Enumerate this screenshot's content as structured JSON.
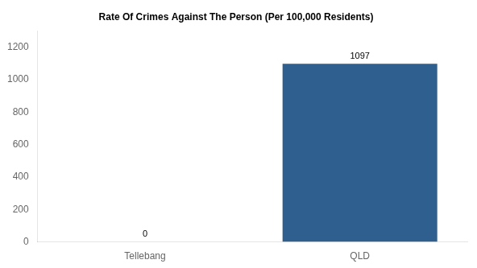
{
  "chart_data": {
    "type": "bar",
    "title": "Rate Of Crimes Against The Person (Per 100,000 Residents)",
    "categories": [
      "Tellebang",
      "QLD"
    ],
    "values": [
      0,
      1097
    ],
    "color": "#2f5f8f",
    "ylim": [
      0,
      1300
    ],
    "yticks": [
      0,
      200,
      400,
      600,
      800,
      1000,
      1200
    ],
    "grid": false,
    "data_labels": true
  }
}
